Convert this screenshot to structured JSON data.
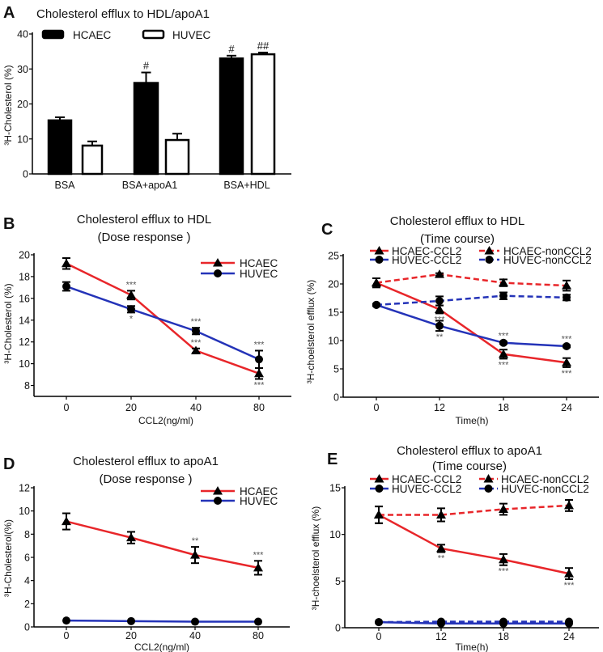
{
  "colors": {
    "red": "#e8262a",
    "blue": "#2433b8",
    "black": "#000000"
  },
  "chart_data": [
    {
      "panel": "A",
      "type": "bar",
      "title": "Cholesterol efflux to HDL/apoA1",
      "ylabel": "³H-Cholesterol (%)",
      "xlabel": "",
      "ylim": [
        0,
        40
      ],
      "yticks": [
        0,
        10,
        20,
        30,
        40
      ],
      "categories": [
        "BSA",
        "BSA+apoA1",
        "BSA+HDL"
      ],
      "series": [
        {
          "name": "HCAEC",
          "fill": "black",
          "values": [
            15.3,
            26.0,
            33.0
          ],
          "errors": [
            0.9,
            3.0,
            0.8
          ],
          "annotations": [
            "",
            "#",
            "#"
          ]
        },
        {
          "name": "HUVEC",
          "fill": "white",
          "values": [
            8.1,
            9.7,
            34.2
          ],
          "errors": [
            1.2,
            1.8,
            0.5
          ],
          "annotations": [
            "",
            "",
            "##"
          ]
        }
      ],
      "legend": "top"
    },
    {
      "panel": "B",
      "type": "line",
      "title": [
        "Cholesterol efflux to HDL",
        "(Dose response )"
      ],
      "ylabel": "³H-Cholesterol (%)",
      "xlabel": "CCL2(ng/ml)",
      "x": [
        "0",
        "20",
        "40",
        "80"
      ],
      "ylim": [
        7,
        20
      ],
      "yticks": [
        8,
        10,
        12,
        14,
        16,
        18,
        20
      ],
      "series": [
        {
          "name": "HCAEC",
          "color": "red",
          "marker": "triangle",
          "dashed": false,
          "values": [
            19.2,
            16.3,
            11.2,
            9.1
          ],
          "errors": [
            0.5,
            0.4,
            0.2,
            0.5
          ],
          "annotations": [
            null,
            {
              "text": "***",
              "pos": "above"
            },
            {
              "text": "***",
              "pos": "above"
            },
            {
              "text": "***",
              "pos": "below"
            }
          ]
        },
        {
          "name": "HUVEC",
          "color": "blue",
          "marker": "circle",
          "dashed": false,
          "values": [
            17.1,
            15.0,
            13.0,
            10.4
          ],
          "errors": [
            0.4,
            0.3,
            0.3,
            0.8
          ],
          "annotations": [
            null,
            {
              "text": "*",
              "pos": "below"
            },
            {
              "text": "***",
              "pos": "above"
            },
            {
              "text": "***",
              "pos": "above"
            }
          ]
        }
      ],
      "legend": "top-right"
    },
    {
      "panel": "C",
      "type": "line",
      "title": [
        "Cholesterol efflux to HDL",
        "(Time course)"
      ],
      "ylabel": "³H-choelsterol efflux (%)",
      "xlabel": "Time(h)",
      "x": [
        "0",
        "12",
        "18",
        "24"
      ],
      "ylim": [
        0,
        25
      ],
      "yticks": [
        0,
        5,
        10,
        15,
        20,
        25
      ],
      "series": [
        {
          "name": "HCAEC-CCL2",
          "color": "red",
          "marker": "triangle",
          "dashed": false,
          "values": [
            20.2,
            15.5,
            7.6,
            6.1
          ],
          "errors": [
            0.8,
            0.7,
            0.8,
            0.8
          ],
          "annotations": [
            null,
            {
              "text": "***",
              "pos": "below"
            },
            {
              "text": "***",
              "pos": "below"
            },
            {
              "text": "***",
              "pos": "below"
            }
          ]
        },
        {
          "name": "HCAEC-nonCCL2",
          "color": "red",
          "marker": "triangle",
          "dashed": true,
          "values": [
            20.2,
            21.7,
            20.2,
            19.7
          ],
          "errors": [
            0.8,
            0.2,
            0.6,
            0.9
          ],
          "annotations": []
        },
        {
          "name": "HUVEC-CCL2",
          "color": "blue",
          "marker": "circle",
          "dashed": false,
          "values": [
            16.3,
            12.6,
            9.6,
            9.0
          ],
          "errors": [
            0.2,
            0.9,
            0.2,
            0.2
          ],
          "annotations": [
            null,
            {
              "text": "**",
              "pos": "below"
            },
            {
              "text": "***",
              "pos": "above"
            },
            {
              "text": "***",
              "pos": "above"
            }
          ]
        },
        {
          "name": "HUVEC-nonCCL2",
          "color": "blue",
          "marker": "circle",
          "dashed": true,
          "values": [
            16.3,
            17.0,
            17.9,
            17.6
          ],
          "errors": [
            0.2,
            0.8,
            0.6,
            0.5
          ],
          "annotations": []
        }
      ],
      "legend": "top"
    },
    {
      "panel": "D",
      "type": "line",
      "title": [
        "Cholesterol efflux to apoA1",
        "(Dose response )"
      ],
      "ylabel": "³H-Cholesterol(%)",
      "xlabel": "CCL2(ng/ml)",
      "x": [
        "0",
        "20",
        "40",
        "80"
      ],
      "ylim": [
        0,
        12
      ],
      "yticks": [
        0,
        2,
        4,
        6,
        8,
        10,
        12
      ],
      "series": [
        {
          "name": "HCAEC",
          "color": "red",
          "marker": "triangle",
          "dashed": false,
          "values": [
            9.1,
            7.7,
            6.2,
            5.1
          ],
          "errors": [
            0.7,
            0.5,
            0.7,
            0.6
          ],
          "annotations": [
            null,
            null,
            {
              "text": "**",
              "pos": "above"
            },
            {
              "text": "***",
              "pos": "above"
            }
          ]
        },
        {
          "name": "HUVEC",
          "color": "blue",
          "marker": "circle",
          "dashed": false,
          "values": [
            0.55,
            0.5,
            0.45,
            0.45
          ],
          "errors": [
            0,
            0,
            0,
            0
          ],
          "annotations": []
        }
      ],
      "legend": "top-right"
    },
    {
      "panel": "E",
      "type": "line",
      "title": [
        "Cholesterol efflux to apoA1",
        "(Time course)"
      ],
      "ylabel": "³H-choelsterol efflux (%)",
      "xlabel": "Time(h)",
      "x": [
        "0",
        "12",
        "18",
        "24"
      ],
      "ylim": [
        0,
        15
      ],
      "yticks": [
        0,
        5,
        10,
        15
      ],
      "series": [
        {
          "name": "HCAEC-CCL2",
          "color": "red",
          "marker": "triangle",
          "dashed": false,
          "values": [
            12.1,
            8.5,
            7.3,
            5.8
          ],
          "errors": [
            0.9,
            0.4,
            0.6,
            0.6
          ],
          "annotations": [
            null,
            {
              "text": "**",
              "pos": "below"
            },
            {
              "text": "***",
              "pos": "below"
            },
            {
              "text": "***",
              "pos": "below"
            }
          ]
        },
        {
          "name": "HCAEC-nonCCL2",
          "color": "red",
          "marker": "triangle",
          "dashed": true,
          "values": [
            12.1,
            12.1,
            12.7,
            13.1
          ],
          "errors": [
            0.9,
            0.7,
            0.6,
            0.6
          ],
          "annotations": []
        },
        {
          "name": "HUVEC-CCL2",
          "color": "blue",
          "marker": "circle",
          "dashed": false,
          "values": [
            0.6,
            0.45,
            0.45,
            0.45
          ],
          "errors": [
            0,
            0,
            0,
            0
          ],
          "annotations": []
        },
        {
          "name": "HUVEC-nonCCL2",
          "color": "blue",
          "marker": "circle",
          "dashed": true,
          "values": [
            0.6,
            0.65,
            0.65,
            0.65
          ],
          "errors": [
            0,
            0,
            0,
            0
          ],
          "annotations": []
        }
      ],
      "legend": "top"
    }
  ]
}
